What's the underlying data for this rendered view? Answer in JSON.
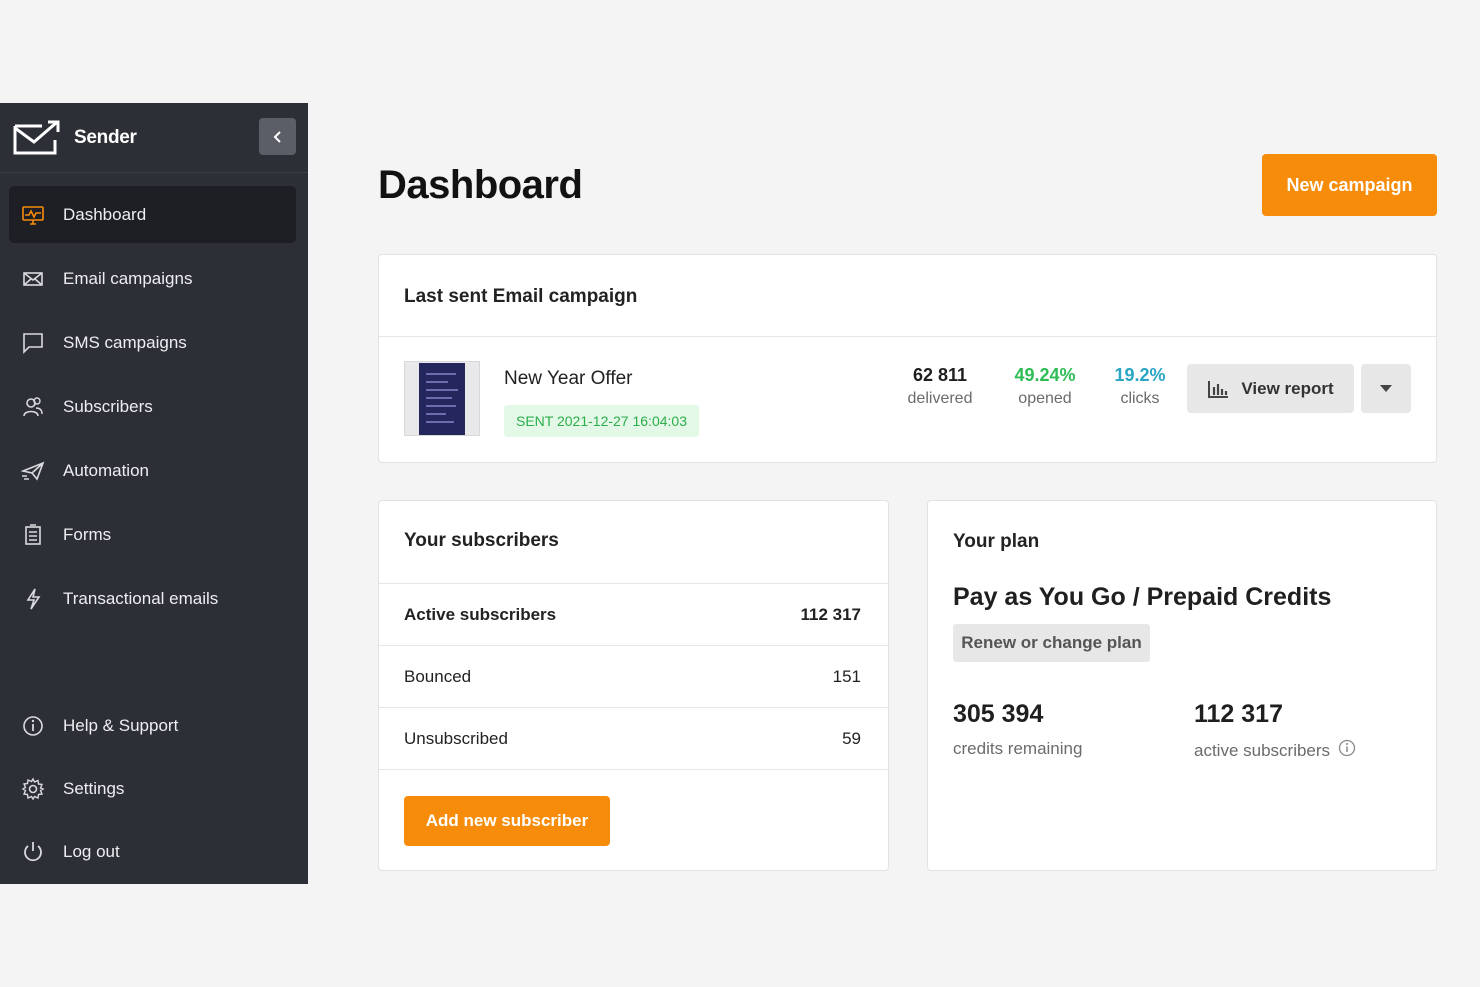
{
  "brand": {
    "name": "Sender"
  },
  "sidebar": {
    "items": [
      {
        "label": "Dashboard",
        "icon": "dashboard-icon",
        "active": true
      },
      {
        "label": "Email campaigns",
        "icon": "envelope-icon"
      },
      {
        "label": "SMS campaigns",
        "icon": "chat-bubble-icon"
      },
      {
        "label": "Subscribers",
        "icon": "users-icon"
      },
      {
        "label": "Automation",
        "icon": "paper-plane-icon"
      },
      {
        "label": "Forms",
        "icon": "form-icon"
      },
      {
        "label": "Transactional emails",
        "icon": "lightning-icon"
      }
    ],
    "bottom_items": [
      {
        "label": "Help & Support",
        "icon": "info-icon"
      },
      {
        "label": "Settings",
        "icon": "gear-icon"
      },
      {
        "label": "Log out",
        "icon": "power-icon"
      }
    ]
  },
  "page": {
    "title": "Dashboard",
    "new_campaign_label": "New campaign"
  },
  "last_campaign": {
    "title": "Last sent Email campaign",
    "name": "New Year Offer",
    "status": "SENT 2021-12-27 16:04:03",
    "delivered": {
      "value": "62 811",
      "label": "delivered"
    },
    "opened": {
      "value": "49.24%",
      "label": "opened"
    },
    "clicks": {
      "value": "19.2%",
      "label": "clicks"
    },
    "view_report_label": "View report"
  },
  "subscribers": {
    "title": "Your subscribers",
    "rows": [
      {
        "label": "Active subscribers",
        "value": "112 317"
      },
      {
        "label": "Bounced",
        "value": "151"
      },
      {
        "label": "Unsubscribed",
        "value": "59"
      }
    ],
    "add_label": "Add new subscriber"
  },
  "plan": {
    "title": "Your plan",
    "name": "Pay as You Go / Prepaid Credits",
    "renew_label": "Renew or change plan",
    "credits": {
      "value": "305 394",
      "label": "credits remaining"
    },
    "active": {
      "value": "112 317",
      "label": "active subscribers"
    }
  },
  "colors": {
    "accent": "#f78b0a",
    "sidebar": "#2c2f36",
    "opened": "#2ebd55",
    "clicks": "#2aa5c4",
    "sent_badge": "#e3f8e7"
  }
}
